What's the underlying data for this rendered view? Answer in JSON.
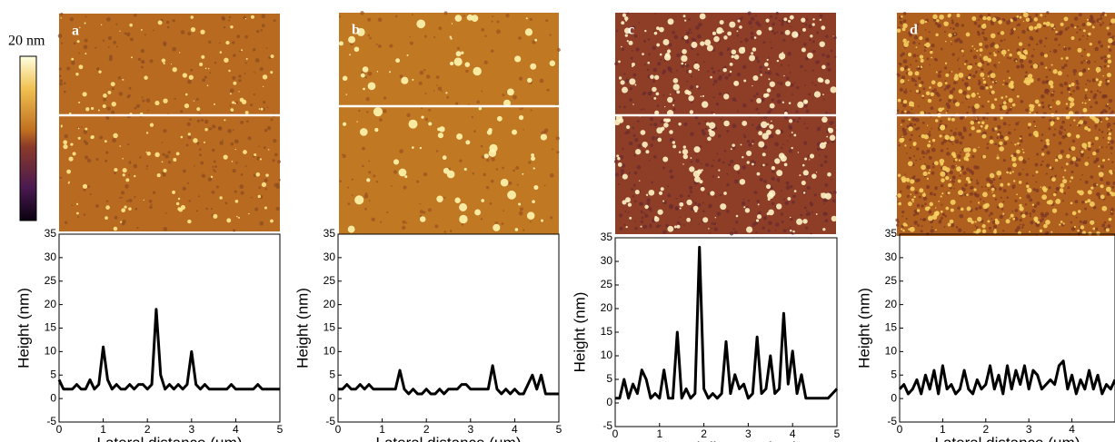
{
  "colorbar_label": "20 nm",
  "chart_data": [
    {
      "type": "line",
      "panel_label": "a",
      "xlabel": "Lateral distance (µm)",
      "ylabel": "Height (nm)",
      "color": "#000000",
      "x": [
        0,
        0.1,
        0.2,
        0.3,
        0.4,
        0.5,
        0.6,
        0.7,
        0.8,
        0.9,
        1,
        1.1,
        1.2,
        1.3,
        1.4,
        1.5,
        1.6,
        1.7,
        1.8,
        1.9,
        2,
        2.1,
        2.2,
        2.3,
        2.4,
        2.5,
        2.6,
        2.7,
        2.8,
        2.9,
        3,
        3.1,
        3.2,
        3.3,
        3.4,
        3.5,
        3.6,
        3.7,
        3.8,
        3.9,
        4,
        4.1,
        4.2,
        4.3,
        4.4,
        4.5,
        4.6,
        4.7,
        4.8,
        4.9,
        5
      ],
      "values": [
        4,
        2,
        2,
        2,
        3,
        2,
        2,
        4,
        2,
        3,
        11,
        4,
        2,
        3,
        2,
        2,
        3,
        2,
        3,
        3,
        2,
        3,
        19,
        5,
        2,
        3,
        2,
        3,
        2,
        3,
        10,
        3,
        2,
        3,
        2,
        2,
        2,
        2,
        2,
        3,
        2,
        2,
        2,
        2,
        2,
        3,
        2,
        2,
        2,
        2,
        2
      ],
      "xlim": [
        0,
        5
      ],
      "ylim": [
        -5,
        35
      ],
      "xticks": [
        0,
        1,
        2,
        3,
        4,
        5
      ],
      "yticks": [
        -5,
        0,
        5,
        10,
        15,
        20,
        25,
        30,
        35
      ]
    },
    {
      "type": "line",
      "panel_label": "b",
      "xlabel": "Lateral distance (µm)",
      "ylabel": "Height (nm)",
      "color": "#000000",
      "x": [
        0,
        0.1,
        0.2,
        0.3,
        0.4,
        0.5,
        0.6,
        0.7,
        0.8,
        0.9,
        1,
        1.1,
        1.2,
        1.3,
        1.4,
        1.5,
        1.6,
        1.7,
        1.8,
        1.9,
        2,
        2.1,
        2.2,
        2.3,
        2.4,
        2.5,
        2.6,
        2.7,
        2.8,
        2.9,
        3,
        3.1,
        3.2,
        3.3,
        3.4,
        3.5,
        3.6,
        3.7,
        3.8,
        3.9,
        4,
        4.1,
        4.2,
        4.3,
        4.4,
        4.5,
        4.6,
        4.7,
        4.8,
        4.9,
        5
      ],
      "values": [
        2,
        2,
        3,
        2,
        2,
        3,
        2,
        3,
        2,
        2,
        2,
        2,
        2,
        2,
        6,
        2,
        1,
        2,
        1,
        1,
        2,
        1,
        1,
        2,
        1,
        2,
        2,
        2,
        3,
        3,
        2,
        2,
        2,
        2,
        2,
        7,
        2,
        1,
        2,
        1,
        2,
        1,
        1,
        3,
        5,
        2,
        5,
        1,
        1,
        1,
        1
      ],
      "xlim": [
        0,
        5
      ],
      "ylim": [
        -5,
        35
      ],
      "xticks": [
        0,
        1,
        2,
        3,
        4,
        5
      ],
      "yticks": [
        -5,
        0,
        5,
        10,
        15,
        20,
        25,
        30,
        35
      ]
    },
    {
      "type": "line",
      "panel_label": "c",
      "xlabel": "Lateral distance (µm)",
      "ylabel": "Height (nm)",
      "color": "#000000",
      "x": [
        0,
        0.1,
        0.2,
        0.3,
        0.4,
        0.5,
        0.6,
        0.7,
        0.8,
        0.9,
        1,
        1.1,
        1.2,
        1.3,
        1.4,
        1.5,
        1.6,
        1.7,
        1.8,
        1.9,
        2,
        2.1,
        2.2,
        2.3,
        2.4,
        2.5,
        2.6,
        2.7,
        2.8,
        2.9,
        3,
        3.1,
        3.2,
        3.3,
        3.4,
        3.5,
        3.6,
        3.7,
        3.8,
        3.9,
        4,
        4.1,
        4.2,
        4.3,
        4.4,
        4.5,
        4.6,
        4.7,
        4.8,
        4.9,
        5
      ],
      "values": [
        1,
        1,
        5,
        1,
        4,
        2,
        7,
        5,
        1,
        2,
        1,
        7,
        1,
        1,
        15,
        1,
        3,
        1,
        2,
        33,
        3,
        1,
        2,
        1,
        2,
        13,
        2,
        6,
        3,
        4,
        1,
        2,
        14,
        2,
        3,
        10,
        2,
        3,
        19,
        4,
        11,
        2,
        6,
        1,
        1,
        1,
        1,
        1,
        1,
        2,
        3
      ],
      "xlim": [
        0,
        5
      ],
      "ylim": [
        -5,
        35
      ],
      "xticks": [
        0,
        1,
        2,
        3,
        4,
        5
      ],
      "yticks": [
        -5,
        0,
        5,
        10,
        15,
        20,
        25,
        30,
        35
      ]
    },
    {
      "type": "line",
      "panel_label": "d",
      "xlabel": "Lateral distance (µm)",
      "ylabel": "Height (nm)",
      "color": "#000000",
      "x": [
        0,
        0.1,
        0.2,
        0.3,
        0.4,
        0.5,
        0.6,
        0.7,
        0.8,
        0.9,
        1,
        1.1,
        1.2,
        1.3,
        1.4,
        1.5,
        1.6,
        1.7,
        1.8,
        1.9,
        2,
        2.1,
        2.2,
        2.3,
        2.4,
        2.5,
        2.6,
        2.7,
        2.8,
        2.9,
        3,
        3.1,
        3.2,
        3.3,
        3.4,
        3.5,
        3.6,
        3.7,
        3.8,
        3.9,
        4,
        4.1,
        4.2,
        4.3,
        4.4,
        4.5,
        4.6,
        4.7,
        4.8,
        4.9,
        5
      ],
      "values": [
        2,
        3,
        1,
        2,
        4,
        1,
        5,
        2,
        6,
        1,
        7,
        2,
        3,
        1,
        2,
        6,
        2,
        1,
        4,
        2,
        3,
        7,
        2,
        5,
        1,
        7,
        2,
        6,
        3,
        7,
        2,
        6,
        5,
        2,
        3,
        4,
        3,
        7,
        8,
        2,
        5,
        1,
        4,
        2,
        6,
        2,
        5,
        1,
        3,
        2,
        4
      ],
      "xlim": [
        0,
        5
      ],
      "ylim": [
        -5,
        35
      ],
      "xticks": [
        0,
        1,
        2,
        3,
        4
      ],
      "yticks": [
        -5,
        0,
        5,
        10,
        15,
        20,
        25,
        30,
        35
      ]
    }
  ]
}
